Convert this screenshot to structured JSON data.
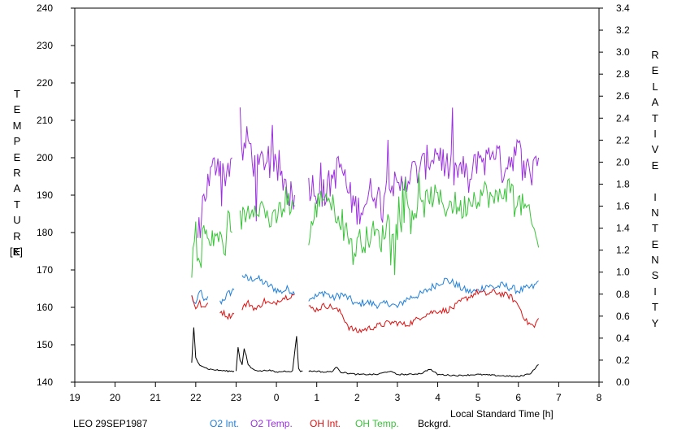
{
  "chart_data": {
    "type": "line",
    "title": "LEO 29SEP1987",
    "xlabel": "Local Standard Time [h]",
    "ylabel_left": "TEMPERATURE",
    "ylabel_left_unit": "[K]",
    "ylabel_right": "RELATIVE INTENSITY",
    "xticks": [
      "19",
      "20",
      "21",
      "22",
      "23",
      "0",
      "1",
      "2",
      "3",
      "4",
      "5",
      "6",
      "7",
      "8"
    ],
    "xlim": [
      19,
      32
    ],
    "ylim_left": [
      140,
      240
    ],
    "yticks_left": [
      "140",
      "150",
      "160",
      "170",
      "180",
      "190",
      "200",
      "210",
      "220",
      "230",
      "240"
    ],
    "ylim_right": [
      0.0,
      3.4
    ],
    "yticks_right": [
      "0.0",
      "0.2",
      "0.4",
      "0.6",
      "0.8",
      "1.0",
      "1.2",
      "1.4",
      "1.6",
      "1.8",
      "2.0",
      "2.2",
      "2.4",
      "2.6",
      "2.8",
      "3.0",
      "3.2",
      "3.4"
    ],
    "grid": false,
    "legend_position": "bottom",
    "series": [
      {
        "name": "O2 Int.",
        "axis": "right",
        "color": "#1f7fdb",
        "noise": 0.035,
        "spikes": 0,
        "segments": [
          {
            "x": [
              21.9,
              22.0,
              22.1,
              22.2,
              22.3
            ],
            "y": [
              0.78,
              0.68,
              0.85,
              0.72,
              0.78
            ]
          },
          {
            "x": [
              22.6,
              22.8,
              22.95
            ],
            "y": [
              0.72,
              0.8,
              0.84
            ]
          },
          {
            "x": [
              23.15,
              23.3,
              23.5,
              23.7,
              23.9,
              24.1,
              24.3,
              24.45
            ],
            "y": [
              0.98,
              0.93,
              0.95,
              0.9,
              0.86,
              0.82,
              0.85,
              0.8
            ]
          },
          {
            "x": [
              24.8,
              25.0,
              25.2,
              25.4,
              25.6,
              25.8,
              26.0,
              26.2,
              26.4,
              26.6,
              26.8,
              27.0,
              27.2,
              27.4,
              27.6,
              27.8,
              28.0,
              28.2,
              28.4,
              28.6,
              28.8,
              29.0,
              29.2,
              29.4,
              29.6,
              29.8,
              30.0,
              30.2,
              30.4,
              30.5
            ],
            "y": [
              0.77,
              0.78,
              0.82,
              0.76,
              0.8,
              0.76,
              0.7,
              0.73,
              0.71,
              0.7,
              0.72,
              0.68,
              0.75,
              0.78,
              0.8,
              0.85,
              0.9,
              0.93,
              0.9,
              0.85,
              0.82,
              0.83,
              0.88,
              0.86,
              0.88,
              0.86,
              0.83,
              0.85,
              0.87,
              0.92
            ]
          }
        ]
      },
      {
        "name": "O2 Temp.",
        "axis": "left",
        "color": "#9b30e0",
        "noise": 4.5,
        "spikes": 2,
        "segments": [
          {
            "x": [
              22.05,
              22.2,
              22.4,
              22.55,
              22.7,
              22.9
            ],
            "y": [
              178,
              190,
              196,
              200,
              195,
              200
            ]
          },
          {
            "x": [
              23.1,
              23.3,
              23.5,
              23.7,
              23.9,
              24.1,
              24.3,
              24.45
            ],
            "y": [
              200,
              205,
              196,
              200,
              197,
              196,
              191,
              190
            ]
          },
          {
            "x": [
              24.8,
              25.0,
              25.2,
              25.4,
              25.6,
              25.8,
              26.0,
              26.2,
              26.4,
              26.6,
              26.8,
              27.0,
              27.2,
              27.4,
              27.6,
              27.8,
              28.0,
              28.2,
              28.4,
              28.6,
              28.8,
              29.0,
              29.2,
              29.4,
              29.6,
              29.8,
              30.0,
              30.2,
              30.4,
              30.5
            ],
            "y": [
              193,
              192,
              190,
              195,
              198,
              190,
              186,
              188,
              192,
              188,
              196,
              190,
              195,
              196,
              197,
              200,
              202,
              198,
              196,
              197,
              193,
              201,
              199,
              203,
              197,
              200,
              202,
              196,
              200,
              200
            ]
          }
        ]
      },
      {
        "name": "OH Int.",
        "axis": "right",
        "color": "#dd1111",
        "noise": 0.028,
        "spikes": 0,
        "segments": [
          {
            "x": [
              21.9,
              22.0,
              22.1,
              22.2,
              22.3
            ],
            "y": [
              0.78,
              0.68,
              0.72,
              0.66,
              0.72
            ]
          },
          {
            "x": [
              22.6,
              22.8,
              22.95
            ],
            "y": [
              0.65,
              0.6,
              0.62
            ]
          },
          {
            "x": [
              23.15,
              23.3,
              23.5,
              23.7,
              23.9,
              24.1,
              24.3,
              24.45
            ],
            "y": [
              0.68,
              0.72,
              0.66,
              0.74,
              0.7,
              0.76,
              0.78,
              0.8
            ]
          },
          {
            "x": [
              24.8,
              25.0,
              25.2,
              25.4,
              25.6,
              25.8,
              26.0,
              26.2,
              26.4,
              26.6,
              26.8,
              27.0,
              27.2,
              27.4,
              27.6,
              27.8,
              28.0,
              28.2,
              28.4,
              28.6,
              28.8,
              29.0,
              29.2,
              29.4,
              29.6,
              29.8,
              30.0,
              30.2,
              30.4,
              30.5
            ],
            "y": [
              0.68,
              0.66,
              0.7,
              0.68,
              0.63,
              0.5,
              0.46,
              0.48,
              0.5,
              0.52,
              0.54,
              0.54,
              0.52,
              0.55,
              0.6,
              0.63,
              0.65,
              0.65,
              0.68,
              0.74,
              0.78,
              0.82,
              0.8,
              0.82,
              0.8,
              0.78,
              0.7,
              0.55,
              0.5,
              0.58
            ]
          }
        ]
      },
      {
        "name": "OH Temp.",
        "axis": "left",
        "color": "#3ac43a",
        "noise": 3.5,
        "spikes": 2,
        "segments": [
          {
            "x": [
              21.9,
              22.0,
              22.1,
              22.2,
              22.35,
              22.5,
              22.7,
              22.9
            ],
            "y": [
              171,
              182,
              170,
              182,
              176,
              180,
              176,
              180
            ]
          },
          {
            "x": [
              23.1,
              23.3,
              23.5,
              23.7,
              23.9,
              24.1,
              24.3,
              24.45
            ],
            "y": [
              183,
              186,
              188,
              186,
              182,
              186,
              188,
              187
            ]
          },
          {
            "x": [
              24.8,
              25.0,
              25.2,
              25.4,
              25.6,
              25.8,
              25.9,
              26.0,
              26.2,
              26.4,
              26.6,
              26.8,
              27.0,
              27.2,
              27.4,
              27.6,
              27.8,
              28.0,
              28.2,
              28.4,
              28.6,
              28.8,
              29.0,
              29.2,
              29.4,
              29.6,
              29.8,
              30.0,
              30.2,
              30.4,
              30.5
            ],
            "y": [
              178,
              187,
              191,
              187,
              184,
              180,
              173,
              178,
              178,
              180,
              178,
              184,
              180,
              187,
              186,
              186,
              190,
              189,
              187,
              188,
              186,
              189,
              190,
              191,
              188,
              191,
              192,
              188,
              186,
              180,
              176
            ]
          }
        ]
      },
      {
        "name": "Bckgrd.",
        "axis": "right",
        "color": "#000000",
        "noise": 0.006,
        "spikes": 0,
        "segments": [
          {
            "x": [
              21.9,
              21.95,
              22.0,
              22.05,
              22.1,
              22.2,
              22.3,
              22.5,
              22.8,
              22.95
            ],
            "y": [
              0.18,
              0.5,
              0.22,
              0.18,
              0.16,
              0.14,
              0.12,
              0.11,
              0.1,
              0.1
            ]
          },
          {
            "x": [
              23.0,
              23.05,
              23.1,
              23.15,
              23.2,
              23.25,
              23.3,
              23.4,
              23.6,
              23.8,
              24.0,
              24.2,
              24.4,
              24.5,
              24.55,
              24.6,
              24.65
            ],
            "y": [
              0.1,
              0.32,
              0.2,
              0.16,
              0.3,
              0.24,
              0.16,
              0.12,
              0.1,
              0.11,
              0.09,
              0.1,
              0.1,
              0.42,
              0.12,
              0.1,
              0.1
            ]
          },
          {
            "x": [
              24.8,
              25.0,
              25.2,
              25.4,
              25.5,
              25.6,
              25.8,
              26.0,
              26.5,
              26.8,
              27.0,
              27.3,
              27.6,
              27.8,
              28.0,
              28.5,
              29.0,
              29.5,
              30.0,
              30.3,
              30.5
            ],
            "y": [
              0.1,
              0.1,
              0.09,
              0.1,
              0.14,
              0.09,
              0.08,
              0.07,
              0.07,
              0.1,
              0.07,
              0.07,
              0.08,
              0.12,
              0.07,
              0.06,
              0.07,
              0.06,
              0.05,
              0.08,
              0.16
            ]
          }
        ]
      }
    ]
  }
}
